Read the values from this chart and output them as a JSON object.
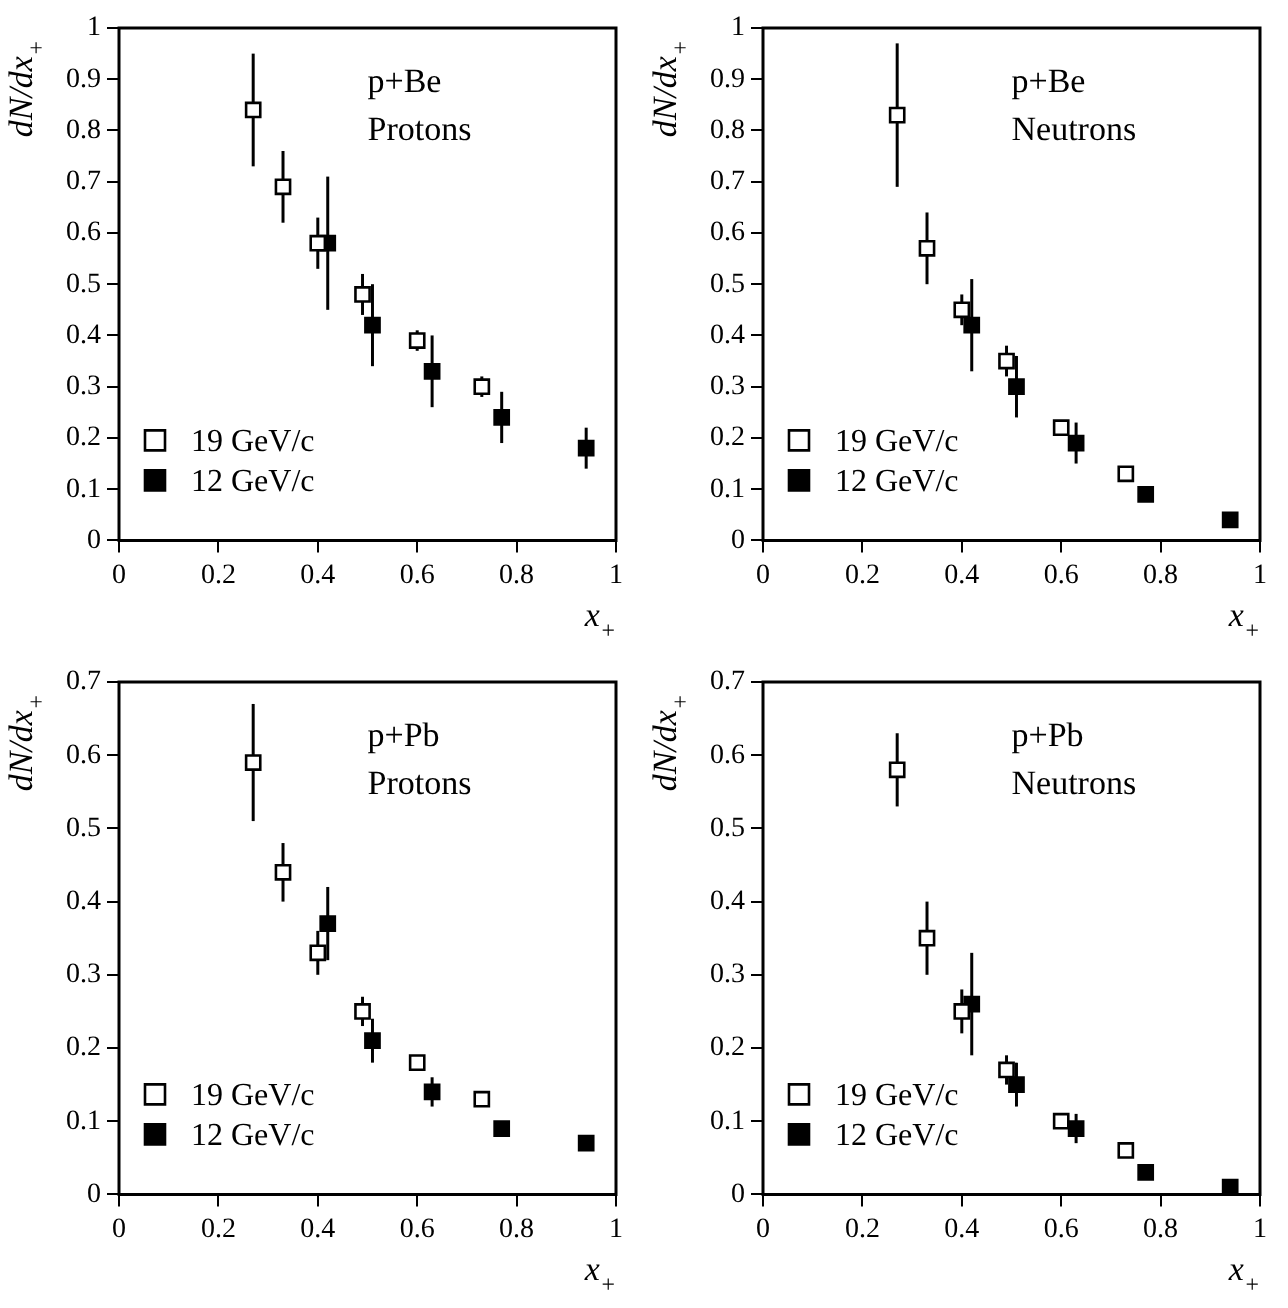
{
  "chart_data": [
    {
      "type": "scatter",
      "xlabel": "x$_{+}$",
      "ylabel": "dN/dx$_{+}$",
      "annotations": [
        "p+Be",
        "Protons"
      ],
      "xlim": [
        0,
        1
      ],
      "xticks": [
        0,
        0.2,
        0.4,
        0.6,
        0.8,
        1
      ],
      "ylim": [
        0,
        1
      ],
      "yticks": [
        0,
        0.1,
        0.2,
        0.3,
        0.4,
        0.5,
        0.6,
        0.7,
        0.8,
        0.9,
        1
      ],
      "grid": false,
      "legend": "bottom left",
      "marker": "square",
      "series": [
        {
          "name": "19 GeV/c",
          "color": "#000000",
          "x": [
            0.27,
            0.33,
            0.4,
            0.49,
            0.6,
            0.73
          ],
          "values": [
            0.84,
            0.69,
            0.58,
            0.48,
            0.39,
            0.3
          ],
          "errors": [
            0.11,
            0.07,
            0.05,
            0.04,
            0.02,
            0.02
          ]
        },
        {
          "name": "12 GeV/c",
          "color": "#000000",
          "x": [
            0.42,
            0.51,
            0.63,
            0.77,
            0.94
          ],
          "values": [
            0.58,
            0.42,
            0.33,
            0.24,
            0.18
          ],
          "errors": [
            0.13,
            0.08,
            0.07,
            0.05,
            0.04
          ]
        }
      ]
    },
    {
      "type": "scatter",
      "xlabel": "x$_{+}$",
      "ylabel": "dN/dx$_{+}$",
      "annotations": [
        "p+Be",
        "Neutrons"
      ],
      "xlim": [
        0,
        1
      ],
      "xticks": [
        0,
        0.2,
        0.4,
        0.6,
        0.8,
        1
      ],
      "ylim": [
        0,
        1
      ],
      "yticks": [
        0,
        0.1,
        0.2,
        0.3,
        0.4,
        0.5,
        0.6,
        0.7,
        0.8,
        0.9,
        1
      ],
      "grid": false,
      "legend": "bottom left",
      "marker": "square",
      "series": [
        {
          "name": "19 GeV/c",
          "color": "#000000",
          "x": [
            0.27,
            0.33,
            0.4,
            0.49,
            0.6,
            0.73
          ],
          "values": [
            0.83,
            0.57,
            0.45,
            0.35,
            0.22,
            0.13
          ],
          "errors": [
            0.14,
            0.07,
            0.03,
            0.03,
            0.01,
            0.01
          ]
        },
        {
          "name": "12 GeV/c",
          "color": "#000000",
          "x": [
            0.42,
            0.51,
            0.63,
            0.77,
            0.94
          ],
          "values": [
            0.42,
            0.3,
            0.19,
            0.09,
            0.04
          ],
          "errors": [
            0.09,
            0.06,
            0.04,
            null,
            null
          ]
        }
      ]
    },
    {
      "type": "scatter",
      "xlabel": "x$_{+}$",
      "ylabel": "dN/dx$_{+}$",
      "annotations": [
        "p+Pb",
        "Protons"
      ],
      "xlim": [
        0,
        1
      ],
      "xticks": [
        0,
        0.2,
        0.4,
        0.6,
        0.8,
        1
      ],
      "ylim": [
        0,
        0.7
      ],
      "yticks": [
        0,
        0.1,
        0.2,
        0.3,
        0.4,
        0.5,
        0.6,
        0.7
      ],
      "grid": false,
      "legend": "bottom left",
      "marker": "square",
      "series": [
        {
          "name": "19 GeV/c",
          "color": "#000000",
          "x": [
            0.27,
            0.33,
            0.4,
            0.49,
            0.6,
            0.73
          ],
          "values": [
            0.59,
            0.44,
            0.33,
            0.25,
            0.18,
            0.13
          ],
          "errors": [
            0.08,
            0.04,
            0.03,
            0.02,
            0.01,
            null
          ]
        },
        {
          "name": "12 GeV/c",
          "color": "#000000",
          "x": [
            0.42,
            0.51,
            0.63,
            0.77,
            0.94
          ],
          "values": [
            0.37,
            0.21,
            0.14,
            0.09,
            0.07
          ],
          "errors": [
            0.05,
            0.03,
            0.02,
            null,
            null
          ]
        }
      ]
    },
    {
      "type": "scatter",
      "xlabel": "x$_{+}$",
      "ylabel": "dN/dx$_{+}$",
      "annotations": [
        "p+Pb",
        "Neutrons"
      ],
      "xlim": [
        0,
        1
      ],
      "xticks": [
        0,
        0.2,
        0.4,
        0.6,
        0.8,
        1
      ],
      "ylim": [
        0,
        0.7
      ],
      "yticks": [
        0,
        0.1,
        0.2,
        0.3,
        0.4,
        0.5,
        0.6,
        0.7
      ],
      "grid": false,
      "legend": "bottom left",
      "marker": "square",
      "series": [
        {
          "name": "19 GeV/c",
          "color": "#000000",
          "x": [
            0.27,
            0.33,
            0.4,
            0.49,
            0.6,
            0.73
          ],
          "values": [
            0.58,
            0.35,
            0.25,
            0.17,
            0.1,
            0.06
          ],
          "errors": [
            0.05,
            0.05,
            0.03,
            0.02,
            null,
            null
          ]
        },
        {
          "name": "12 GeV/c",
          "color": "#000000",
          "x": [
            0.42,
            0.51,
            0.63,
            0.77,
            0.94
          ],
          "values": [
            0.26,
            0.15,
            0.09,
            0.03,
            0.01
          ],
          "errors": [
            0.07,
            0.03,
            0.02,
            null,
            null
          ]
        }
      ]
    }
  ]
}
